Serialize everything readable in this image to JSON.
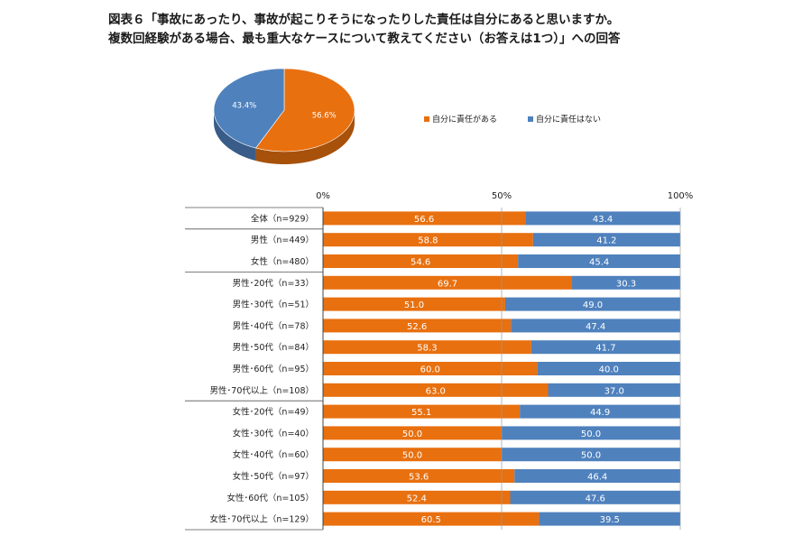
{
  "title_lines": [
    "図表６「事故にあったり、事故が起こりそうになったりした責任は自分にあると思いますか。",
    "複数回経験がある場合、最も重大なケースについて教えてください（お答えは1つ）」への回答"
  ],
  "colors": {
    "orange": "#E8700F",
    "blue": "#4F81BD"
  },
  "chart_data": [
    {
      "type": "pie",
      "labels": [
        "自分に責任がある",
        "自分に責任はない"
      ],
      "values": [
        56.6,
        43.4
      ],
      "value_labels": [
        "56.6%",
        "43.4%"
      ],
      "legend": "right"
    },
    {
      "type": "bar",
      "stacked": true,
      "orientation": "horizontal",
      "categories": [
        "全体（n=929）",
        "男性（n=449）",
        "女性（n=480）",
        "男性･20代（n=33）",
        "男性･30代（n=51）",
        "男性･40代（n=78）",
        "男性･50代（n=84）",
        "男性･60代（n=95）",
        "男性･70代以上（n=108）",
        "女性･20代（n=49）",
        "女性･30代（n=40）",
        "女性･40代（n=60）",
        "女性･50代（n=97）",
        "女性･60代（n=105）",
        "女性･70代以上（n=129）"
      ],
      "series": [
        {
          "name": "自分に責任がある",
          "values": [
            56.6,
            58.8,
            54.6,
            69.7,
            51.0,
            52.6,
            58.3,
            60.0,
            63.0,
            55.1,
            50.0,
            50.0,
            53.6,
            52.4,
            60.5
          ]
        },
        {
          "name": "自分に責任はない",
          "values": [
            43.4,
            41.2,
            45.4,
            30.3,
            49.0,
            47.4,
            41.7,
            40.0,
            37.0,
            44.9,
            50.0,
            50.0,
            46.4,
            47.6,
            39.5
          ]
        }
      ],
      "xlim": [
        0,
        100
      ],
      "xticks": [
        "0%",
        "50%",
        "100%"
      ],
      "group_separators_after": [
        0,
        2,
        8
      ]
    }
  ]
}
